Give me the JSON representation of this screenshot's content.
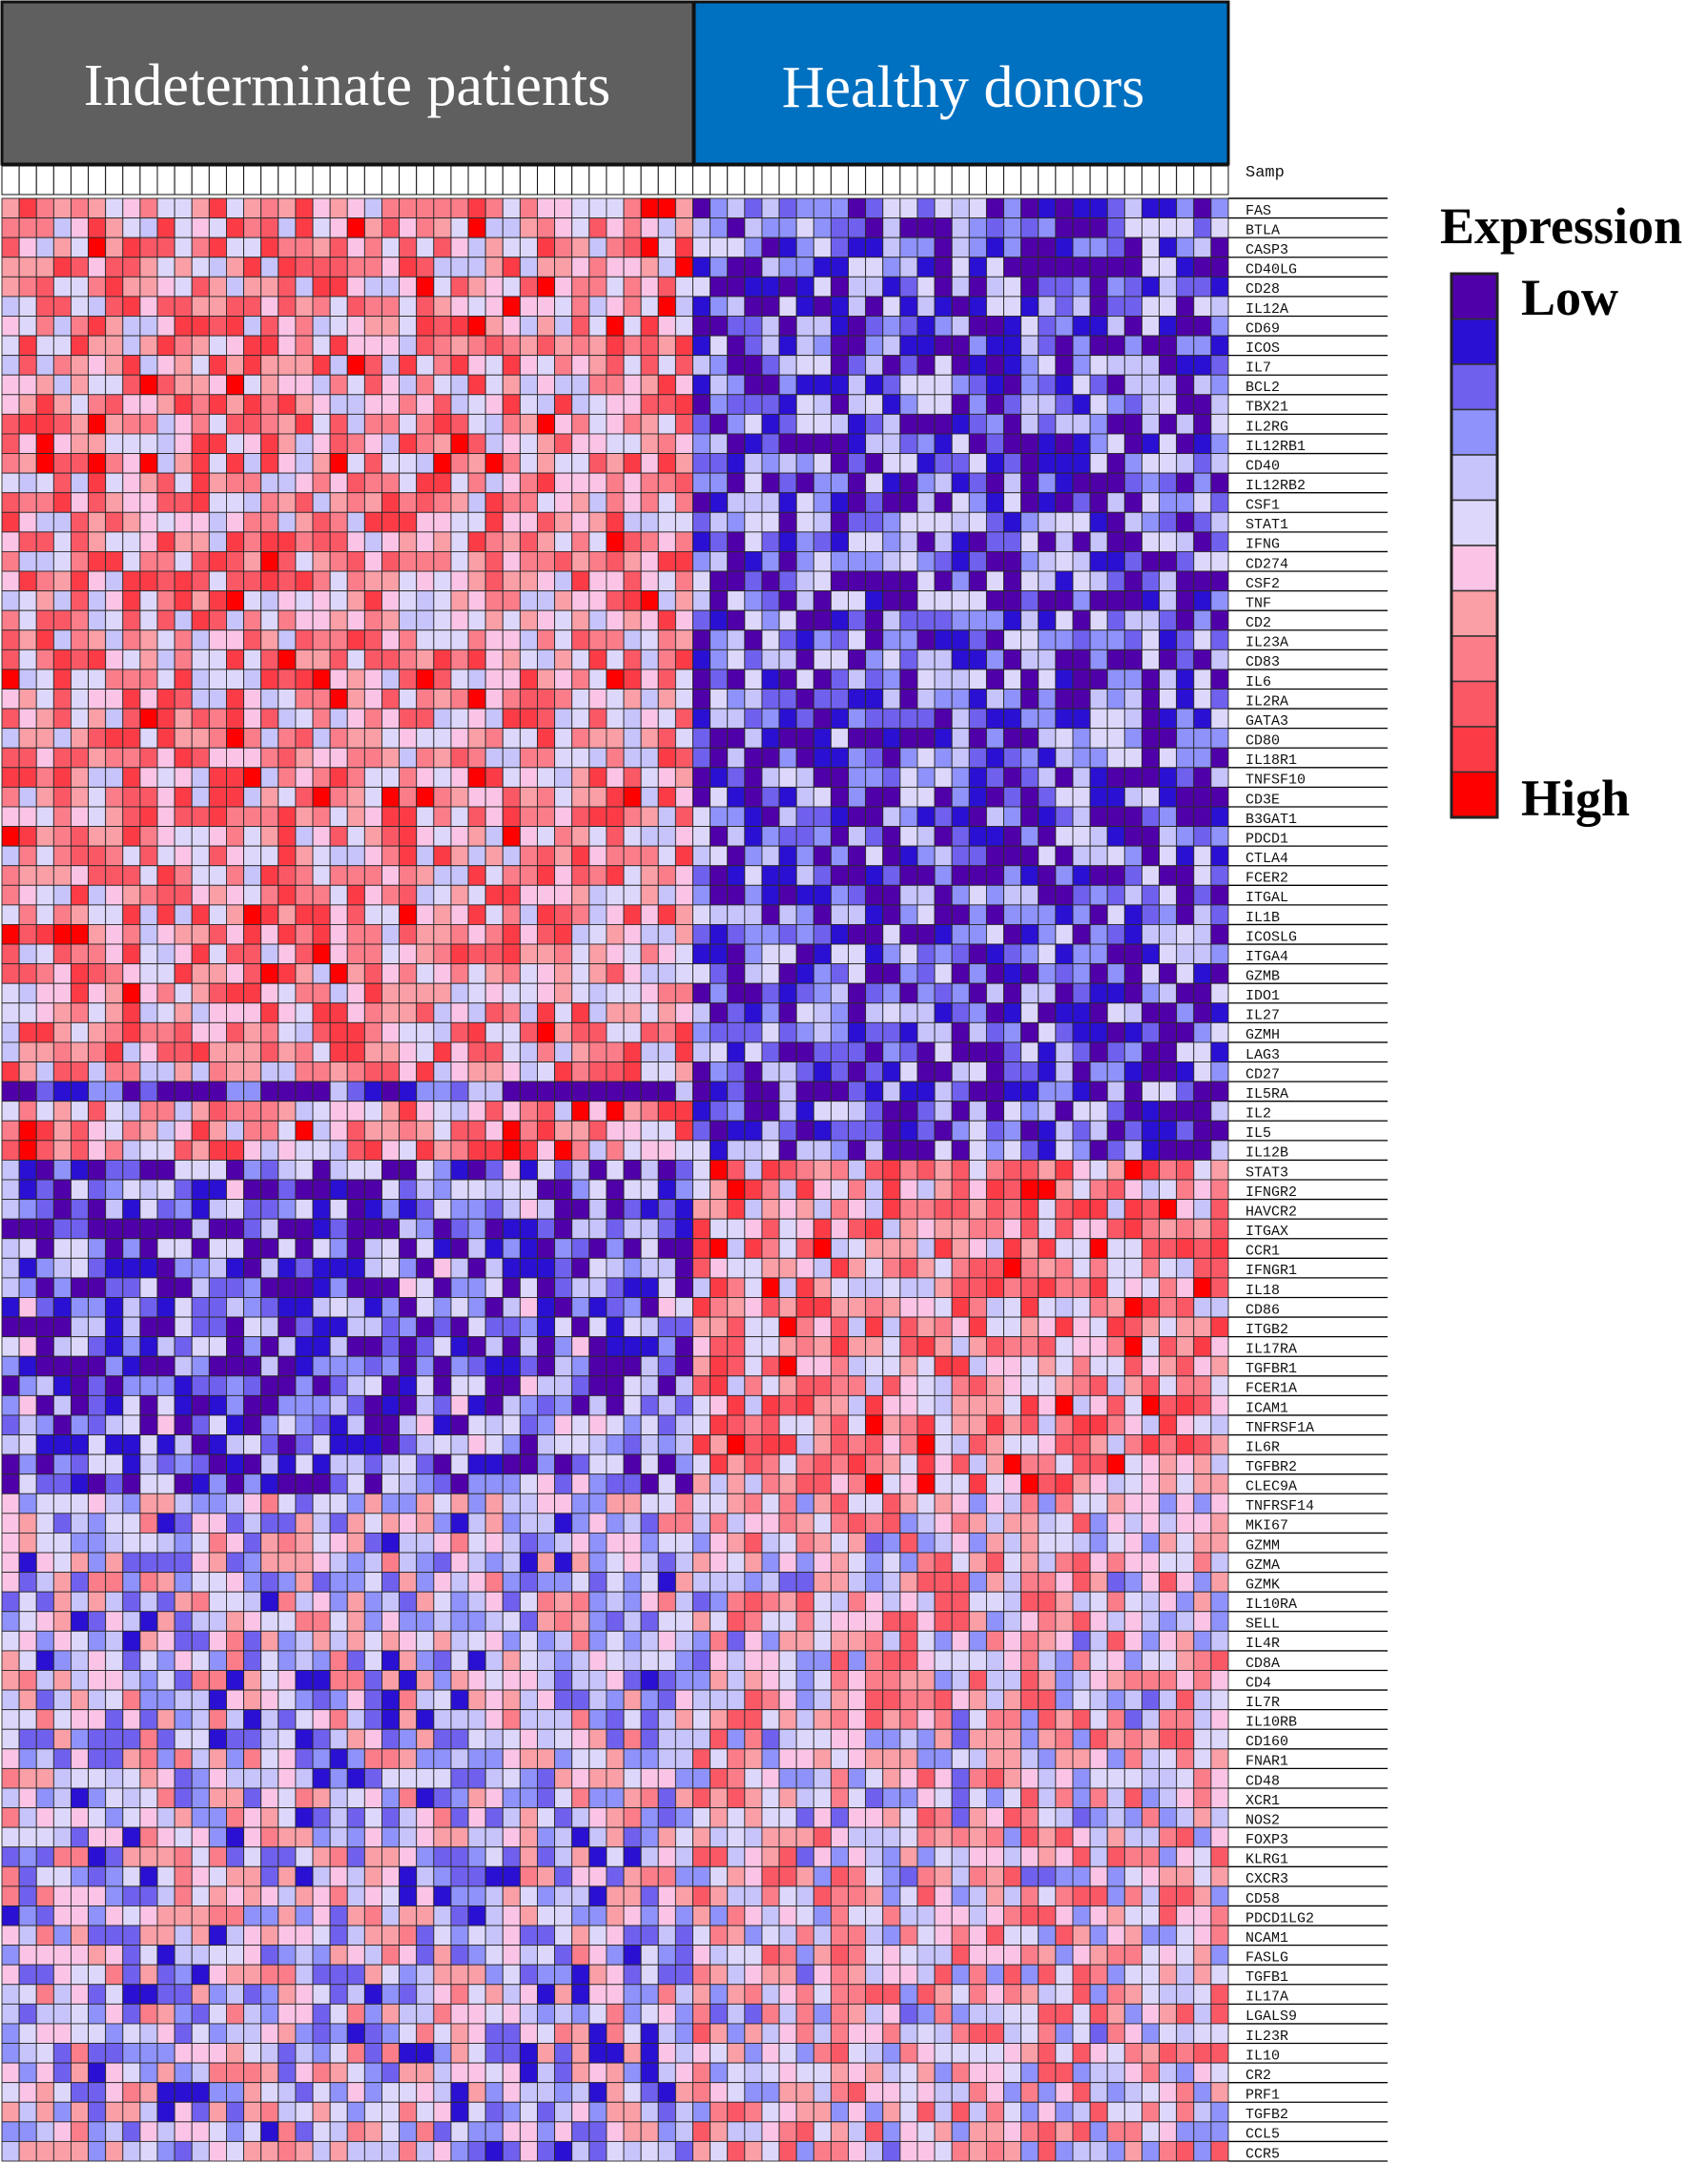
{
  "groups": [
    {
      "label": "Indeterminate patients",
      "n": 40,
      "color": "#5f5f5f"
    },
    {
      "label": "Healthy donors",
      "n": 31,
      "color": "#0070c0"
    }
  ],
  "sample_header": "Samp",
  "legend": {
    "title": "Expression",
    "low_label": "Low",
    "high_label": "High",
    "scale_colors": [
      "#5000a8",
      "#2a10d2",
      "#7060ee",
      "#8e92fa",
      "#c6c4fa",
      "#ddd8fb",
      "#fbc4e6",
      "#fa9fa6",
      "#fb7d8a",
      "#fb5866",
      "#fb3c46",
      "#ff0000"
    ]
  },
  "chart_data": {
    "type": "heatmap",
    "title": "",
    "xlabel": "",
    "ylabel": "",
    "value_range": [
      0,
      11
    ],
    "columns": 71,
    "genes": [
      "FAS",
      "BTLA",
      "CASP3",
      "CD40LG",
      "CD28",
      "IL12A",
      "CD69",
      "ICOS",
      "IL7",
      "BCL2",
      "TBX21",
      "IL2RG",
      "IL12RB1",
      "CD40",
      "IL12RB2",
      "CSF1",
      "STAT1",
      "IFNG",
      "CD274",
      "CSF2",
      "TNF",
      "CD2",
      "IL23A",
      "CD83",
      "IL6",
      "IL2RA",
      "GATA3",
      "CD80",
      "IL18R1",
      "TNFSF10",
      "CD3E",
      "B3GAT1",
      "PDCD1",
      "CTLA4",
      "FCER2",
      "ITGAL",
      "IL1B",
      "ICOSLG",
      "ITGA4",
      "GZMB",
      "IDO1",
      "IL27",
      "GZMH",
      "LAG3",
      "CD27",
      "IL5RA",
      "IL2",
      "IL5",
      "IL12B",
      "STAT3",
      "IFNGR2",
      "HAVCR2",
      "ITGAX",
      "CCR1",
      "IFNGR1",
      "IL18",
      "CD86",
      "ITGB2",
      "IL17RA",
      "TGFBR1",
      "FCER1A",
      "ICAM1",
      "TNFRSF1A",
      "IL6R",
      "TGFBR2",
      "CLEC9A",
      "TNFRSF14",
      "MKI67",
      "GZMM",
      "GZMA",
      "GZMK",
      "IL10RA",
      "SELL",
      "IL4R",
      "CD8A",
      "CD4",
      "IL7R",
      "IL10RB",
      "CD160",
      "FNAR1",
      "CD48",
      "XCR1",
      "NOS2",
      "FOXP3",
      "KLRG1",
      "CXCR3",
      "CD58",
      "PDCD1LG2",
      "NCAM1",
      "FASLG",
      "TGFB1",
      "IL17A",
      "LGALS9",
      "IL23R",
      "IL10",
      "CR2",
      "PRF1",
      "TGFB2",
      "CCL5",
      "CCR5"
    ],
    "patterns": {
      "high_low_until_row": 49,
      "low_high_from_row": 49,
      "mixed_from_row": 66
    }
  }
}
